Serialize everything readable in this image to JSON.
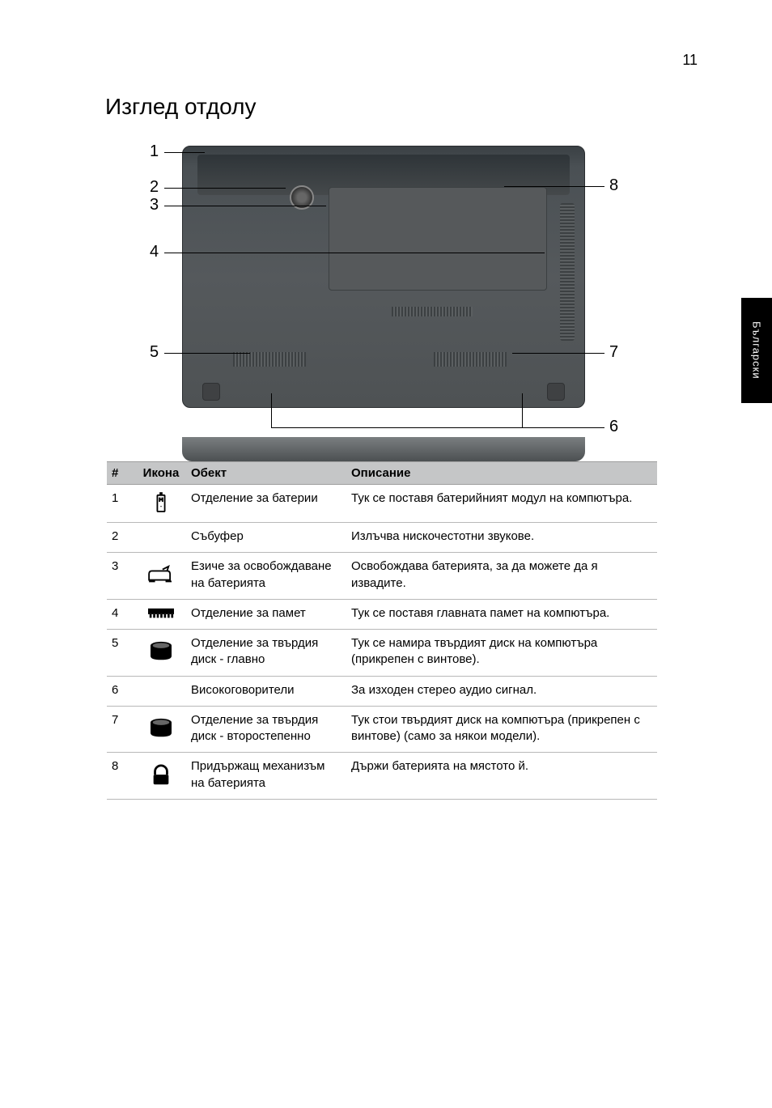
{
  "page_number": "11",
  "heading": "Изглед отдолу",
  "side_tab": "Български",
  "diagram": {
    "callouts_left": [
      "1",
      "2",
      "3",
      "4",
      "5"
    ],
    "callouts_right": [
      "8",
      "7",
      "6"
    ]
  },
  "table": {
    "headers": {
      "num": "#",
      "icon": "Икона",
      "object": "Обект",
      "desc": "Описание"
    },
    "rows": [
      {
        "n": "1",
        "icon": "battery",
        "obj": "Отделение за батерии",
        "desc": "Тук се поставя батерийният модул на компютъра."
      },
      {
        "n": "2",
        "icon": "",
        "obj": "Събуфер",
        "desc": "Излъчва нискочестотни звукове."
      },
      {
        "n": "3",
        "icon": "release",
        "obj": "Езиче за освобождаване на батерията",
        "desc": "Освобождава батерията, за да можете да я извадите."
      },
      {
        "n": "4",
        "icon": "memory",
        "obj": "Отделение за памет",
        "desc": "Тук се поставя главната памет на компютъра."
      },
      {
        "n": "5",
        "icon": "hdd",
        "obj": "Отделение за твърдия диск - главно",
        "desc": "Тук се намира твърдият диск на компютъра (прикрепен с винтове)."
      },
      {
        "n": "6",
        "icon": "",
        "obj": "Високоговорители",
        "desc": "За изходен стерео аудио сигнал."
      },
      {
        "n": "7",
        "icon": "hdd",
        "obj": "Отделение за твърдия диск - второстепенно",
        "desc": "Тук стои твърдият диск на компютъра (прикрепен с винтове) (само за някои модели)."
      },
      {
        "n": "8",
        "icon": "lock",
        "obj": "Придържащ механизъм на батерията",
        "desc": "Държи батерията на мястото й."
      }
    ]
  },
  "colors": {
    "header_bg": "#c5c6c7",
    "border": "#b8b8b8",
    "text": "#000000"
  }
}
